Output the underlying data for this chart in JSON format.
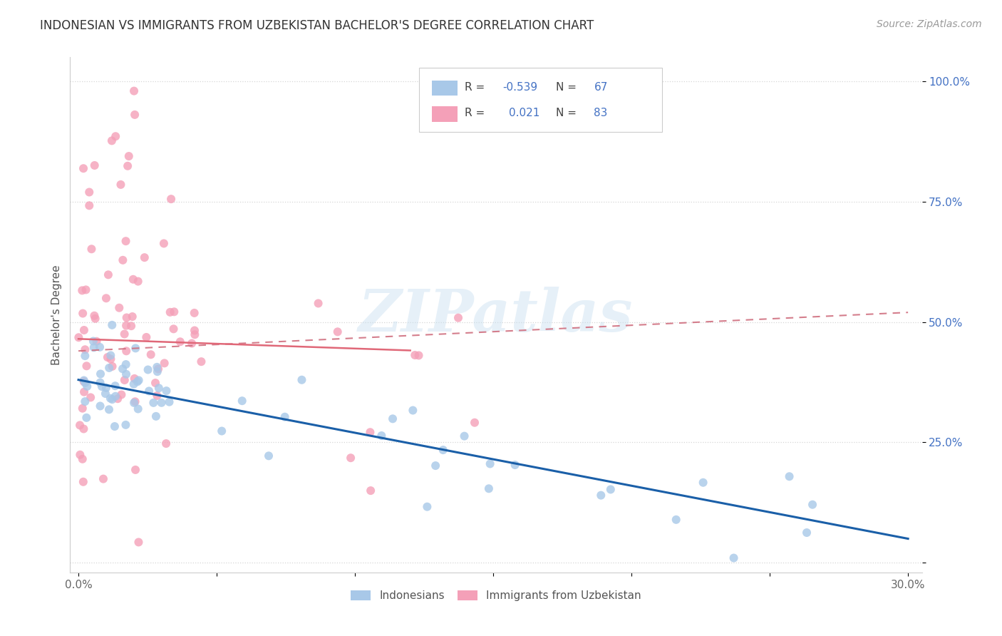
{
  "title": "INDONESIAN VS IMMIGRANTS FROM UZBEKISTAN BACHELOR'S DEGREE CORRELATION CHART",
  "source": "Source: ZipAtlas.com",
  "ylabel": "Bachelor's Degree",
  "watermark": "ZIPatlas",
  "legend_blue_r": "-0.539",
  "legend_blue_n": "67",
  "legend_pink_r": "0.021",
  "legend_pink_n": "83",
  "legend_label1": "Indonesians",
  "legend_label2": "Immigrants from Uzbekistan",
  "blue_color": "#a8c8e8",
  "pink_color": "#f4a0b8",
  "trend_blue_color": "#1a5fa8",
  "trend_pink_color": "#d07080",
  "trend_pink_solid_color": "#e06878",
  "bg_color": "#ffffff",
  "grid_color": "#cccccc",
  "title_color": "#333333",
  "source_color": "#999999",
  "right_tick_color": "#4472c4",
  "bottom_tick_color": "#666666"
}
